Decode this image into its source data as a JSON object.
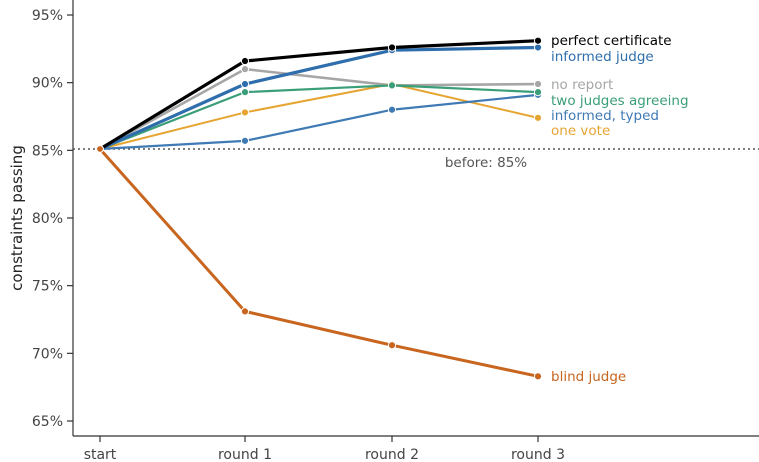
{
  "chart_data": {
    "type": "line",
    "title": "",
    "xlabel": "",
    "ylabel": "constraints passing",
    "categories": [
      "start",
      "round 1",
      "round 2",
      "round 3"
    ],
    "ylim": [
      64,
      96
    ],
    "yticks": [
      65,
      70,
      75,
      80,
      85,
      90,
      95
    ],
    "ytick_labels": [
      "65%",
      "70%",
      "75%",
      "80%",
      "85%",
      "90%",
      "95%"
    ],
    "grid": false,
    "legend": "direct labels at line ends",
    "reference_line": {
      "value": 85.1,
      "label": "before: 85%",
      "style": "dotted",
      "color": "#555555"
    },
    "series": [
      {
        "name": "no report",
        "color": "#a6a6a6",
        "values": [
          85.1,
          91.0,
          89.8,
          89.9
        ]
      },
      {
        "name": "one vote",
        "color": "#e6a532",
        "values": [
          85.1,
          87.8,
          89.9,
          87.4
        ]
      },
      {
        "name": "informed, typed",
        "color": "#3f7ab5",
        "values": [
          85.1,
          85.7,
          88.0,
          89.1
        ]
      },
      {
        "name": "two judges agreeing",
        "color": "#3a9e78",
        "values": [
          85.1,
          89.3,
          89.8,
          89.3
        ]
      },
      {
        "name": "informed judge",
        "color": "#2f6ead",
        "values": [
          85.1,
          89.9,
          92.4,
          92.6
        ]
      },
      {
        "name": "perfect certificate",
        "color": "#000000",
        "values": [
          85.1,
          91.6,
          92.6,
          93.1
        ]
      },
      {
        "name": "blind judge",
        "color": "#c8651f",
        "values": [
          85.1,
          73.1,
          70.6,
          68.3
        ]
      }
    ]
  }
}
